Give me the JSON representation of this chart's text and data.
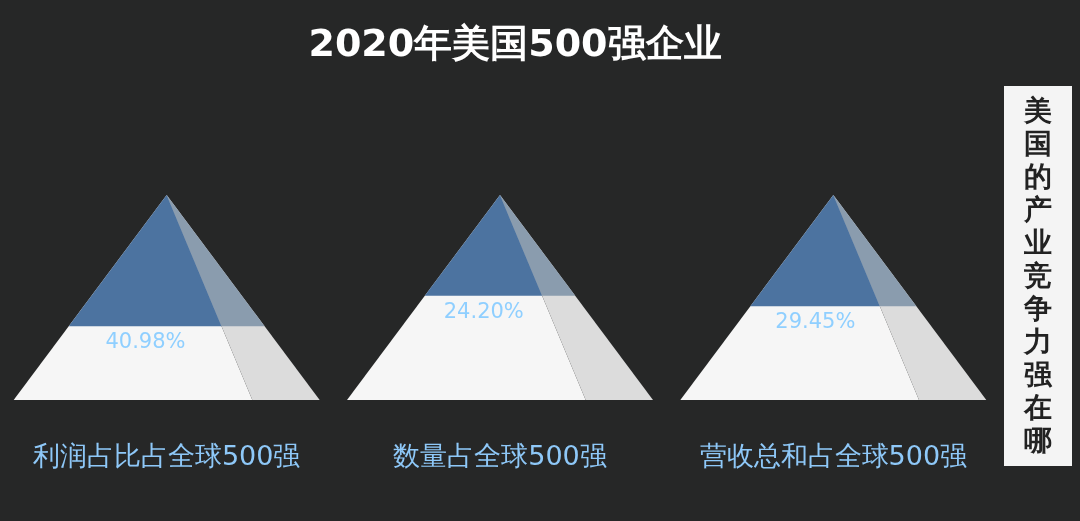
{
  "chart_data": {
    "type": "other",
    "title": "2020年美国500强企业",
    "categories": [
      "利润占比占全球500强",
      "数量占全球500强",
      "营收总和占全球500强"
    ],
    "values": [
      40.98,
      24.2,
      29.45
    ],
    "value_labels": [
      "40.98%",
      "24.20%",
      "29.45%"
    ],
    "annotations": [
      "美国的产业竞争力强在哪"
    ]
  }
}
